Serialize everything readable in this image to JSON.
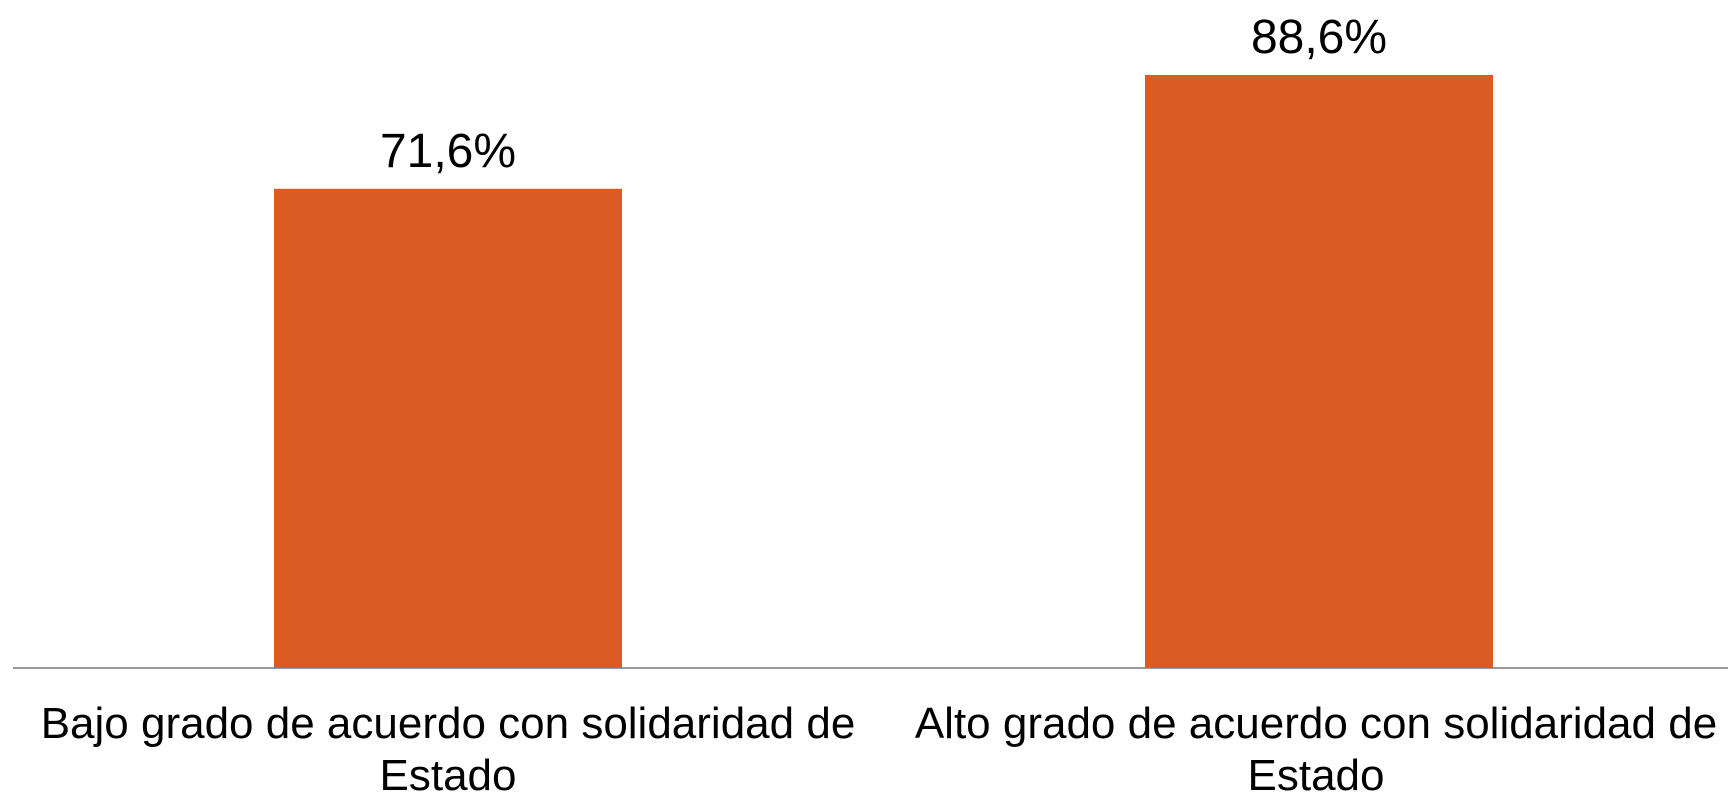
{
  "chart_data": {
    "type": "bar",
    "categories": [
      "Bajo grado de acuerdo con solidaridad de Estado",
      "Alto grado de acuerdo con solidaridad de Estado"
    ],
    "values": [
      71.6,
      88.6
    ],
    "value_labels": [
      "71,6%",
      "88,6%"
    ],
    "color": "#dc5a24"
  }
}
